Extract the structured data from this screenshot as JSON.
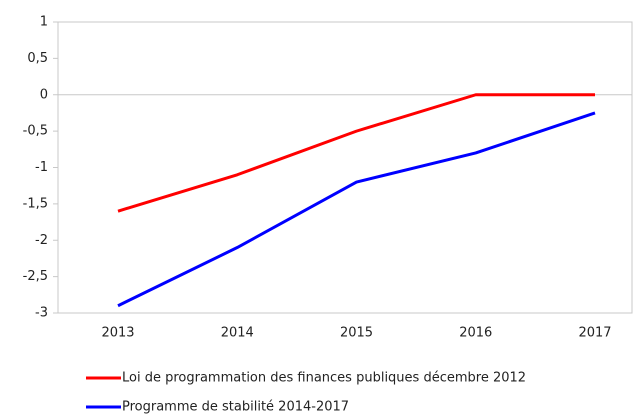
{
  "chart_data": {
    "type": "line",
    "categories": [
      "2013",
      "2014",
      "2015",
      "2016",
      "2017"
    ],
    "series": [
      {
        "name": "Loi de programmation des finances publiques décembre 2012",
        "color": "#ff0000",
        "values": [
          -1.6,
          -1.1,
          -0.5,
          0,
          0
        ]
      },
      {
        "name": "Programme de stabilité 2014-2017",
        "color": "#0000ff",
        "values": [
          -2.9,
          -2.1,
          -1.2,
          -0.8,
          -0.25
        ]
      }
    ],
    "ylim": [
      -3,
      1
    ],
    "yticks": [
      -3,
      {
        "value": -2.5,
        "label": "-2,5"
      },
      -2,
      {
        "value": -1.5,
        "label": "-1,5"
      },
      -1,
      {
        "value": -0.5,
        "label": "-0,5"
      },
      0,
      {
        "value": 0.5,
        "label": "0,5"
      },
      1
    ],
    "grid": false,
    "legend": "bottom"
  }
}
